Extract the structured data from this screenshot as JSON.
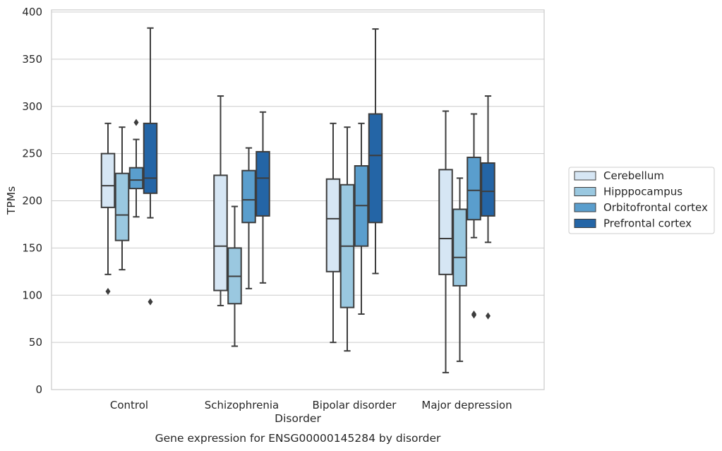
{
  "caption": "Gene expression for ENSG00000145284 by disorder",
  "chart_data": {
    "type": "box",
    "title": "",
    "xlabel": "Disorder",
    "ylabel": "TPMs",
    "ylim": [
      0,
      400
    ],
    "yticks": [
      0,
      50,
      100,
      150,
      200,
      250,
      300,
      350,
      400
    ],
    "grid": "horizontal",
    "legend_position": "right",
    "categories": [
      "Control",
      "Schizophrenia",
      "Bipolar disorder",
      "Major depression"
    ],
    "series": [
      {
        "name": "Cerebellum",
        "color": "#d6e6f4",
        "boxes": [
          {
            "whisker_low": 122,
            "q1": 193,
            "median": 216,
            "q3": 250,
            "whisker_high": 282,
            "outliers": [
              104
            ]
          },
          {
            "whisker_low": 89,
            "q1": 105,
            "median": 152,
            "q3": 227,
            "whisker_high": 311,
            "outliers": []
          },
          {
            "whisker_low": 50,
            "q1": 125,
            "median": 181,
            "q3": 223,
            "whisker_high": 282,
            "outliers": []
          },
          {
            "whisker_low": 18,
            "q1": 122,
            "median": 160,
            "q3": 233,
            "whisker_high": 295,
            "outliers": []
          }
        ]
      },
      {
        "name": "Hipppocampus",
        "color": "#9ac8e0",
        "boxes": [
          {
            "whisker_low": 127,
            "q1": 158,
            "median": 185,
            "q3": 229,
            "whisker_high": 278,
            "outliers": []
          },
          {
            "whisker_low": 46,
            "q1": 91,
            "median": 120,
            "q3": 150,
            "whisker_high": 194,
            "outliers": []
          },
          {
            "whisker_low": 41,
            "q1": 87,
            "median": 152,
            "q3": 217,
            "whisker_high": 278,
            "outliers": []
          },
          {
            "whisker_low": 30,
            "q1": 110,
            "median": 140,
            "q3": 191,
            "whisker_high": 224,
            "outliers": []
          }
        ]
      },
      {
        "name": "Orbitofrontal cortex",
        "color": "#5a9ecd",
        "boxes": [
          {
            "whisker_low": 183,
            "q1": 213,
            "median": 222,
            "q3": 235,
            "whisker_high": 265,
            "outliers": [
              283
            ]
          },
          {
            "whisker_low": 107,
            "q1": 177,
            "median": 201,
            "q3": 232,
            "whisker_high": 256,
            "outliers": []
          },
          {
            "whisker_low": 80,
            "q1": 152,
            "median": 195,
            "q3": 237,
            "whisker_high": 282,
            "outliers": []
          },
          {
            "whisker_low": 161,
            "q1": 180,
            "median": 211,
            "q3": 246,
            "whisker_high": 292,
            "outliers": [
              79,
              80
            ]
          }
        ]
      },
      {
        "name": "Prefrontal cortex",
        "color": "#2465a6",
        "boxes": [
          {
            "whisker_low": 182,
            "q1": 208,
            "median": 224,
            "q3": 282,
            "whisker_high": 383,
            "outliers": [
              93
            ]
          },
          {
            "whisker_low": 113,
            "q1": 184,
            "median": 224,
            "q3": 252,
            "whisker_high": 294,
            "outliers": []
          },
          {
            "whisker_low": 123,
            "q1": 177,
            "median": 248,
            "q3": 292,
            "whisker_high": 382,
            "outliers": []
          },
          {
            "whisker_low": 156,
            "q1": 184,
            "median": 210,
            "q3": 240,
            "whisker_high": 311,
            "outliers": [
              78
            ]
          }
        ]
      }
    ]
  }
}
